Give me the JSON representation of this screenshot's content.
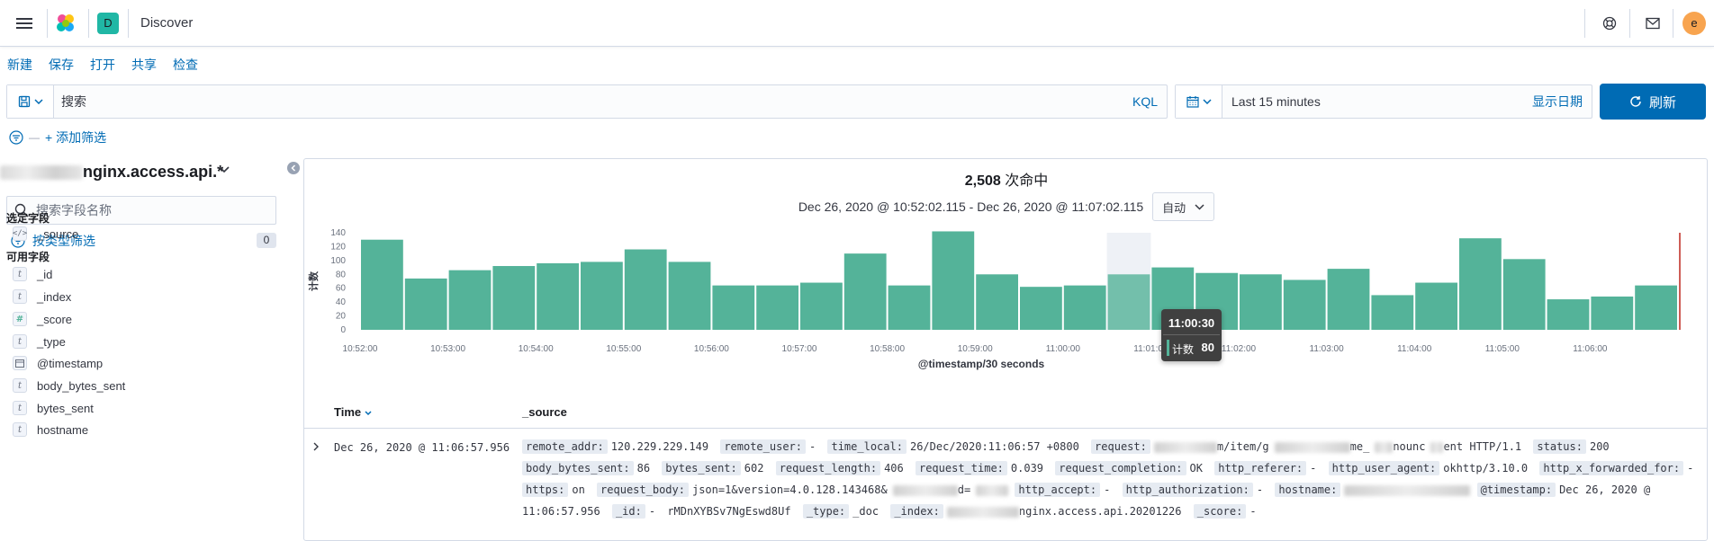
{
  "header": {
    "app_title": "Discover",
    "space_initial": "D",
    "user_initial": "e",
    "colors": {
      "space": "#20b7a5",
      "user": "#f8a44f"
    }
  },
  "topnav": {
    "new": "新建",
    "save": "保存",
    "open": "打开",
    "share": "共享",
    "inspect": "检查"
  },
  "query": {
    "placeholder": "搜索",
    "language": "KQL"
  },
  "time": {
    "range": "Last 15 minutes",
    "show_dates": "显示日期"
  },
  "refresh": {
    "label": "刷新"
  },
  "filters": {
    "dash": "—",
    "add_label": "+ 添加筛选"
  },
  "sidebar": {
    "index_pattern": "nginx.access.api.*",
    "field_search_placeholder": "搜索字段名称",
    "type_filter_label": "按类型筛选",
    "type_filter_count": "0",
    "selected_title": "选定字段",
    "selected_fields": [
      {
        "name": "_source",
        "type": "source"
      }
    ],
    "available_title": "可用字段",
    "available_fields": [
      {
        "name": "_id",
        "type": "t"
      },
      {
        "name": "_index",
        "type": "t"
      },
      {
        "name": "_score",
        "type": "#"
      },
      {
        "name": "_type",
        "type": "t"
      },
      {
        "name": "@timestamp",
        "type": "date"
      },
      {
        "name": "body_bytes_sent",
        "type": "t"
      },
      {
        "name": "bytes_sent",
        "type": "t"
      },
      {
        "name": "hostname",
        "type": "t"
      }
    ]
  },
  "main": {
    "hits_count": "2,508",
    "hits_label": " 次命中",
    "date_range": "Dec 26, 2020 @ 10:52:02.115 - Dec 26, 2020 @ 11:07:02.115",
    "interval": "自动"
  },
  "chart_data": {
    "type": "bar",
    "ylabel": "计数",
    "xlabel": "@timestamp/30 seconds",
    "ylim": [
      0,
      140
    ],
    "yticks": [
      0,
      20,
      40,
      60,
      80,
      100,
      120,
      140
    ],
    "xticks": [
      "10:52:00",
      "10:53:00",
      "10:54:00",
      "10:55:00",
      "10:56:00",
      "10:57:00",
      "10:58:00",
      "10:59:00",
      "11:00:00",
      "11:01:00",
      "11:02:00",
      "11:03:00",
      "11:04:00",
      "11:05:00",
      "11:06:00"
    ],
    "categories": [
      "10:52:00",
      "10:52:30",
      "10:53:00",
      "10:53:30",
      "10:54:00",
      "10:54:30",
      "10:55:00",
      "10:55:30",
      "10:56:00",
      "10:56:30",
      "10:57:00",
      "10:57:30",
      "10:58:00",
      "10:58:30",
      "10:59:00",
      "10:59:30",
      "11:00:00",
      "11:00:30",
      "11:01:00",
      "11:01:30",
      "11:02:00",
      "11:02:30",
      "11:03:00",
      "11:03:30",
      "11:04:00",
      "11:04:30",
      "11:05:00",
      "11:05:30",
      "11:06:00",
      "11:06:30"
    ],
    "values": [
      130,
      74,
      86,
      92,
      96,
      98,
      116,
      98,
      64,
      64,
      68,
      110,
      64,
      142,
      80,
      62,
      64,
      80,
      90,
      82,
      80,
      72,
      88,
      50,
      68,
      132,
      102,
      44,
      48,
      64
    ],
    "highlight_index": 17,
    "bar_color": "#54b399",
    "now_line_color": "#bd271e",
    "tooltip": {
      "title": "11:00:30",
      "label": "计数",
      "value": "80"
    }
  },
  "table": {
    "time_header": "Time",
    "source_header": "_source",
    "row": {
      "time": "Dec 26, 2020 @ 11:06:57.956",
      "fields": [
        {
          "k": "remote_addr:",
          "v": "120.229.229.149"
        },
        {
          "k": "remote_user:",
          "v": "-"
        },
        {
          "k": "time_local:",
          "v": "26/Dec/2020:11:06:57 +0800"
        },
        {
          "k": "request:",
          "v": "m/item/g",
          "blur_before": 70,
          "blur_mid": 84,
          "v2": "me_",
          "blur_mid2": 20,
          "v3": "nounc",
          "blur_mid3": 14,
          "v4": "ent HTTP/1.1"
        },
        {
          "k": "status:",
          "v": "200"
        },
        {
          "k": "body_bytes_sent:",
          "v": "86"
        },
        {
          "k": "bytes_sent:",
          "v": "602"
        },
        {
          "k": "request_length:",
          "v": "406"
        },
        {
          "k": "request_time:",
          "v": "0.039"
        },
        {
          "k": "request_completion:",
          "v": "OK"
        },
        {
          "k": "http_referer:",
          "v": "-"
        },
        {
          "k": "http_user_agent:",
          "v": "okhttp/3.10.0"
        },
        {
          "k": "http_x_forwarded_for:",
          "v": "-"
        },
        {
          "k": "https:",
          "v": "on"
        },
        {
          "k": "request_body:",
          "v": "json=1&version=4.0.128.143468&",
          "blur_after": 72,
          "v2": "d=",
          "blur_mid2": 36
        },
        {
          "k": "http_accept:",
          "v": "-"
        },
        {
          "k": "http_authorization:",
          "v": "-"
        },
        {
          "k": "hostname:",
          "v": "",
          "blur_after": 140
        },
        {
          "k": "@timestamp:",
          "v": "Dec 26, 2020 @ 11:06:57.956"
        },
        {
          "k": "_id:",
          "v": "-"
        },
        {
          "k": "",
          "v": "rMDnXYBSv7NgEswd8Uf",
          "plain": true
        },
        {
          "k": "_type:",
          "v": "_doc"
        },
        {
          "k": "_index:",
          "v": "nginx.access.api.20201226",
          "blur_before": 80
        },
        {
          "k": "_score:",
          "v": "-"
        }
      ]
    }
  }
}
